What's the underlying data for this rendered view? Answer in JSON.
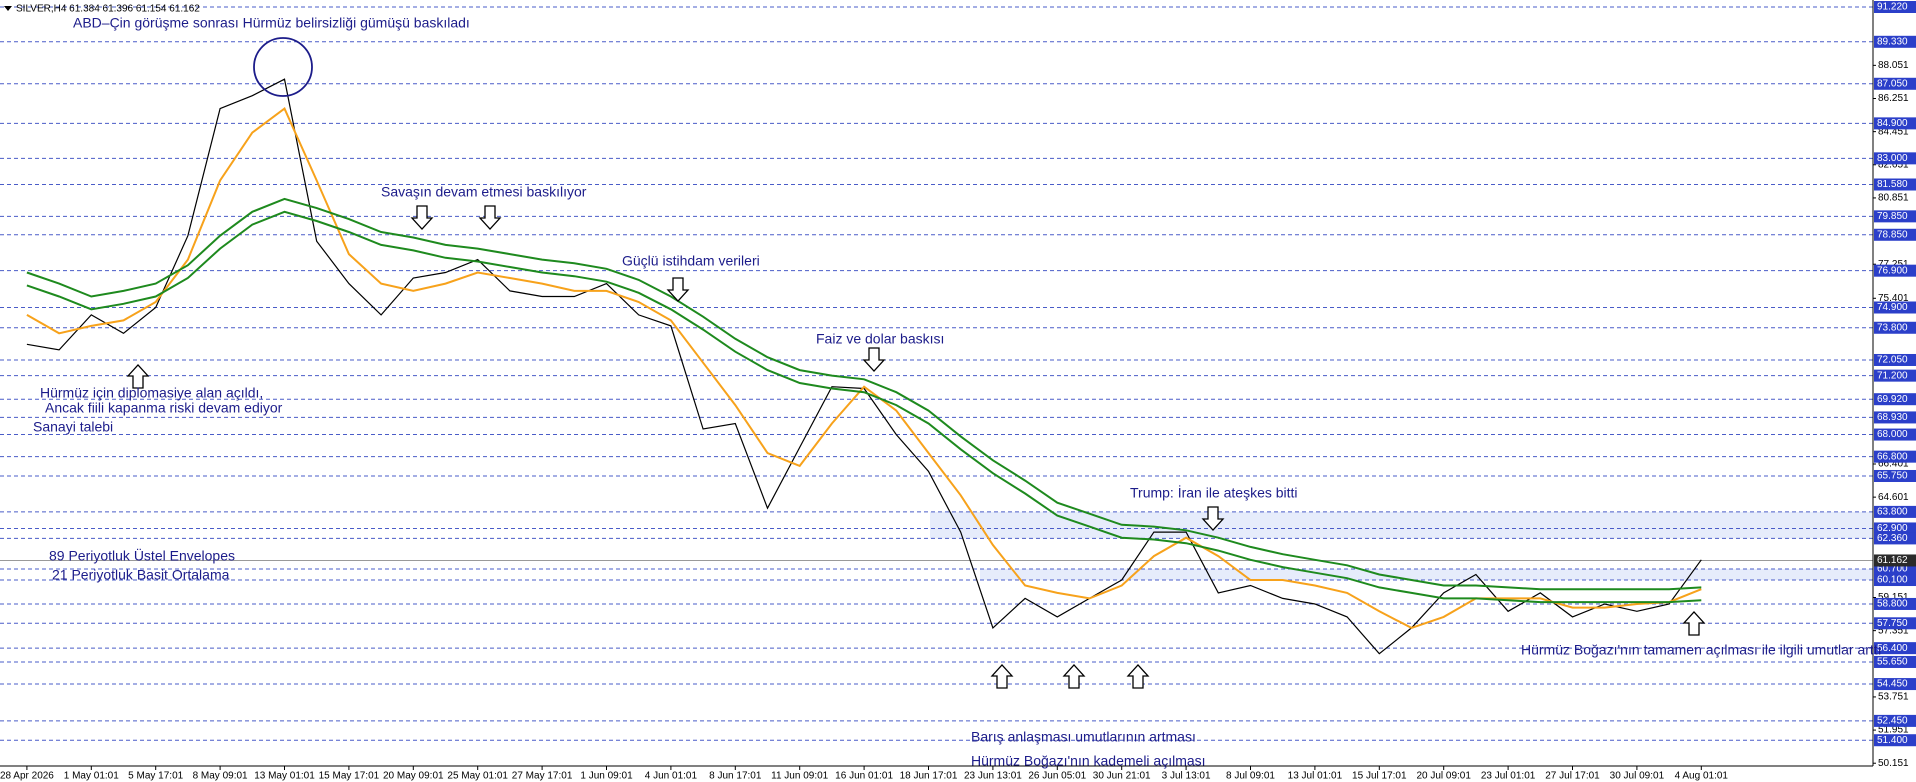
{
  "chart_data": {
    "type": "line",
    "title": "SILVER,H4  61.384 61.396 61.154 61.162",
    "categories": [
      "28 Apr 2026",
      null,
      "1 May 01:01",
      null,
      "5 May 17:01",
      null,
      "8 May 09:01",
      null,
      "13 May 01:01",
      null,
      "15 May 17:01",
      null,
      "20 May 09:01",
      null,
      "25 May 01:01",
      null,
      "27 May 17:01",
      null,
      "1 Jun 09:01",
      null,
      "4 Jun 01:01",
      null,
      "8 Jun 17:01",
      null,
      "11 Jun 09:01",
      null,
      "16 Jun 01:01",
      null,
      "18 Jun 17:01",
      null,
      "23 Jun 13:01",
      null,
      "26 Jun 05:01",
      null,
      "30 Jun 21:01",
      null,
      "3 Jul 13:01",
      null,
      "8 Jul 09:01",
      null,
      "13 Jul 01:01",
      null,
      "15 Jul 17:01",
      null,
      "20 Jul 09:01",
      null,
      "23 Jul 01:01",
      null,
      "27 Jul 17:01",
      null,
      "30 Jul 09:01",
      null,
      "4 Aug 01:01"
    ],
    "series": [
      {
        "color": "#000000",
        "values": [
          72.9,
          72.6,
          74.5,
          73.5,
          74.9,
          78.8,
          85.7,
          86.4,
          87.3,
          78.5,
          76.2,
          74.5,
          76.5,
          76.8,
          77.5,
          75.8,
          75.5,
          75.5,
          76.2,
          74.5,
          73.9,
          68.3,
          68.6,
          64.0,
          67.3,
          70.6,
          70.5,
          68.0,
          66.0,
          62.7,
          57.5,
          59.1,
          58.1,
          59.1,
          60.1,
          62.7,
          62.7,
          59.4,
          59.8,
          59.1,
          58.8,
          58.1,
          56.1,
          57.5,
          59.4,
          60.4,
          58.4,
          59.4,
          58.1,
          58.8,
          58.4,
          58.8,
          61.2
        ]
      },
      {
        "name": "21 Periyotluk Basit Ortalama",
        "color": "#f7a21b",
        "values": [
          74.5,
          73.5,
          73.9,
          74.2,
          75.2,
          77.5,
          81.8,
          84.4,
          85.7,
          81.8,
          77.8,
          76.2,
          75.8,
          76.2,
          76.8,
          76.5,
          76.2,
          75.8,
          75.8,
          75.2,
          74.2,
          71.9,
          69.6,
          67.0,
          66.3,
          68.6,
          70.6,
          69.3,
          67.0,
          64.7,
          62.0,
          59.8,
          59.4,
          59.1,
          59.8,
          61.4,
          62.4,
          61.4,
          60.1,
          60.1,
          59.8,
          59.4,
          58.4,
          57.5,
          58.1,
          59.1,
          59.1,
          59.1,
          58.6,
          58.6,
          58.8,
          58.9,
          59.6
        ]
      },
      {
        "name": "89 Periyotluk Üstel Envelopes",
        "color": "#1e8a1e",
        "values": [
          76.8,
          76.2,
          75.5,
          75.8,
          76.2,
          77.2,
          78.8,
          80.1,
          80.8,
          80.3,
          79.7,
          79.0,
          78.7,
          78.3,
          78.1,
          77.8,
          77.5,
          77.3,
          77.0,
          76.4,
          75.5,
          74.4,
          73.2,
          72.2,
          71.5,
          71.2,
          71.0,
          70.3,
          69.3,
          67.9,
          66.6,
          65.5,
          64.3,
          63.7,
          63.1,
          63.0,
          62.8,
          62.4,
          61.9,
          61.5,
          61.2,
          60.9,
          60.4,
          60.1,
          59.8,
          59.8,
          59.7,
          59.6,
          59.6,
          59.6,
          59.6,
          59.6,
          59.7
        ]
      },
      {
        "color": "#1e8a1e",
        "values": [
          76.1,
          75.5,
          74.8,
          75.1,
          75.5,
          76.5,
          78.1,
          79.4,
          80.1,
          79.6,
          79.0,
          78.3,
          78.0,
          77.6,
          77.4,
          77.1,
          76.8,
          76.6,
          76.3,
          75.7,
          74.8,
          73.7,
          72.5,
          71.5,
          70.8,
          70.5,
          70.3,
          69.6,
          68.6,
          67.2,
          65.9,
          64.8,
          63.6,
          63.0,
          62.4,
          62.3,
          62.1,
          61.7,
          61.2,
          60.8,
          60.5,
          60.2,
          59.7,
          59.4,
          59.1,
          59.1,
          59.0,
          58.9,
          58.9,
          58.9,
          58.9,
          58.9,
          59.0
        ]
      }
    ],
    "ylim": [
      50.0,
      91.6
    ],
    "yticks": [
      88.051,
      86.251,
      84.451,
      82.651,
      80.851,
      77.251,
      75.401,
      66.401,
      64.601,
      59.151,
      57.351,
      53.751,
      51.951,
      50.151
    ],
    "levels": [
      {
        "value": 91.22,
        "label": "91.220"
      },
      {
        "value": 89.33,
        "label": "89.330"
      },
      {
        "value": 87.05,
        "label": "87.050"
      },
      {
        "value": 84.9,
        "label": "84.900"
      },
      {
        "value": 83.0,
        "label": "83.000"
      },
      {
        "value": 81.58,
        "label": "81.580"
      },
      {
        "value": 79.85,
        "label": "79.850"
      },
      {
        "value": 78.85,
        "label": "78.850"
      },
      {
        "value": 76.9,
        "label": "76.900"
      },
      {
        "value": 74.9,
        "label": "74.900"
      },
      {
        "value": 73.8,
        "label": "73.800"
      },
      {
        "value": 72.05,
        "label": "72.050"
      },
      {
        "value": 71.2,
        "label": "71.200"
      },
      {
        "value": 69.92,
        "label": "69.920"
      },
      {
        "value": 68.93,
        "label": "68.930"
      },
      {
        "value": 68.0,
        "label": "68.000"
      },
      {
        "value": 66.8,
        "label": "66.800"
      },
      {
        "value": 65.75,
        "label": "65.750"
      },
      {
        "value": 63.8,
        "label": "63.800"
      },
      {
        "value": 62.9,
        "label": "62.900"
      },
      {
        "value": 62.36,
        "label": "62.360"
      },
      {
        "value": 60.7,
        "label": "60.700"
      },
      {
        "value": 60.1,
        "label": "60.100"
      },
      {
        "value": 58.8,
        "label": "58.800"
      },
      {
        "value": 57.75,
        "label": "57.750"
      },
      {
        "value": 56.4,
        "label": "56.400"
      },
      {
        "value": 55.65,
        "label": "55.650"
      },
      {
        "value": 54.45,
        "label": "54.450"
      },
      {
        "value": 52.45,
        "label": "52.450"
      },
      {
        "value": 51.4,
        "label": "51.400"
      }
    ],
    "last_price": {
      "value": 61.162,
      "label": "61.162"
    },
    "annotations": [
      "ABD–Çin görüşme sonrası Hürmüz belirsizliği gümüşü baskıladı",
      "Savaşın devam etmesi baskılıyor",
      "Güçlü istihdam verileri",
      "Faiz ve dolar baskısı",
      "Hürmüz için diplomasiye alan açıldı,",
      "Ancak fiili kapanma riski devam ediyor",
      "Sanayi talebi",
      "Trump: İran ile ateşkes bitti",
      "Barış anlaşması umutlarının artması",
      "Hürmüz Boğazı'nın kademeli açılması",
      "Hürmüz Boğazı'nın tamamen açılması ile ilgili umutlar arttı"
    ]
  }
}
